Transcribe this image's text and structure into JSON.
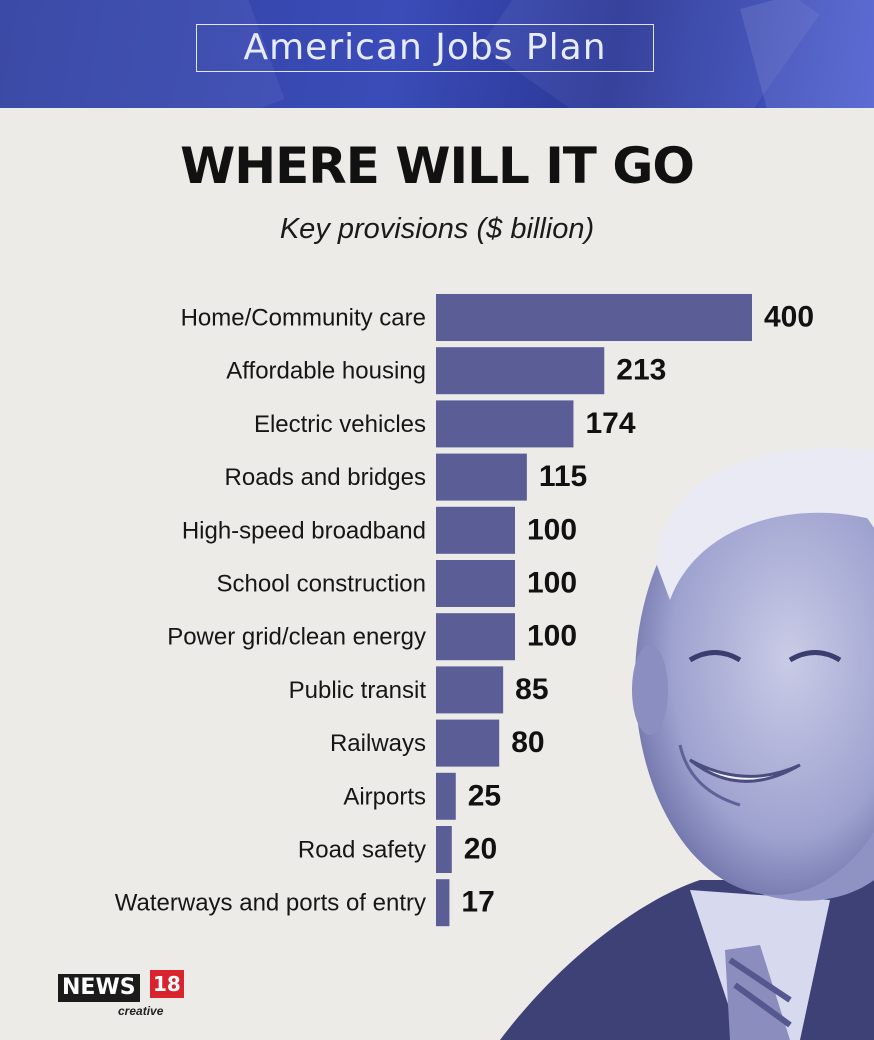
{
  "header": {
    "title": "American Jobs Plan"
  },
  "title": "WHERE WILL IT GO",
  "subtitle": "Key provisions ($ billion)",
  "colors": {
    "bar": "#5a5d96",
    "header": "#3344aa",
    "background": "#ecebe8"
  },
  "chart_data": {
    "type": "bar",
    "orientation": "horizontal",
    "title": "WHERE WILL IT GO",
    "subtitle": "Key provisions ($ billion)",
    "categories": [
      "Home/Community care",
      "Affordable housing",
      "Electric vehicles",
      "Roads and bridges",
      "High-speed broadband",
      "School construction",
      "Power grid/clean energy",
      "Public transit",
      "Railways",
      "Airports",
      "Road safety",
      "Waterways and ports of entry"
    ],
    "values": [
      400,
      213,
      174,
      115,
      100,
      100,
      100,
      85,
      80,
      25,
      20,
      17
    ],
    "xlabel": "",
    "ylabel": "",
    "grid": false,
    "legend": "none"
  },
  "logo": {
    "brand": "NEWS",
    "number": "18",
    "sub": "creative"
  },
  "photo": {
    "description_icon": "person-portrait-icon"
  }
}
